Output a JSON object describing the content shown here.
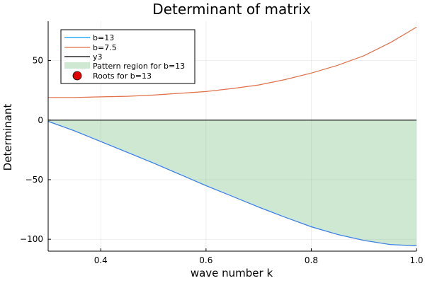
{
  "chart_data": {
    "type": "line",
    "title": "Determinant of matrix",
    "xlabel": "wave number k",
    "ylabel": "Determinant",
    "xlim": [
      0.3,
      1.0
    ],
    "ylim": [
      -110,
      83
    ],
    "xticks": [
      0.4,
      0.6,
      0.8,
      1.0
    ],
    "xtick_labels": [
      "0.4",
      "0.6",
      "0.8",
      "1.0"
    ],
    "yticks": [
      -100,
      -50,
      0,
      50
    ],
    "ytick_labels": [
      "−100",
      "−50",
      "0",
      "50"
    ],
    "grid": true,
    "legend_position": "top-left",
    "x": [
      0.3,
      0.35,
      0.4,
      0.45,
      0.5,
      0.55,
      0.6,
      0.65,
      0.7,
      0.75,
      0.8,
      0.85,
      0.9,
      0.95,
      1.0
    ],
    "series": [
      {
        "name": "b=13",
        "color": "#009af9",
        "values": [
          -1,
          -9,
          -18,
          -27,
          -36,
          -45.5,
          -55,
          -64,
          -73,
          -81.5,
          -89.5,
          -96,
          -101,
          -104.5,
          -105.5
        ]
      },
      {
        "name": "b=7.5",
        "color": "#e26f46",
        "values": [
          19,
          19,
          19.5,
          20,
          21,
          22.5,
          24,
          26.5,
          29.5,
          34,
          39.5,
          46,
          54,
          65,
          78
        ]
      },
      {
        "name": "y3",
        "color": "#000000",
        "values": [
          0,
          0,
          0,
          0,
          0,
          0,
          0,
          0,
          0,
          0,
          0,
          0,
          0,
          0,
          0
        ]
      }
    ],
    "fill": {
      "name": "Pattern region for b=13",
      "color": "#3da44d",
      "opacity": 0.25
    },
    "roots": {
      "name": "Roots for b=13",
      "color": "#e00000",
      "points": []
    }
  }
}
